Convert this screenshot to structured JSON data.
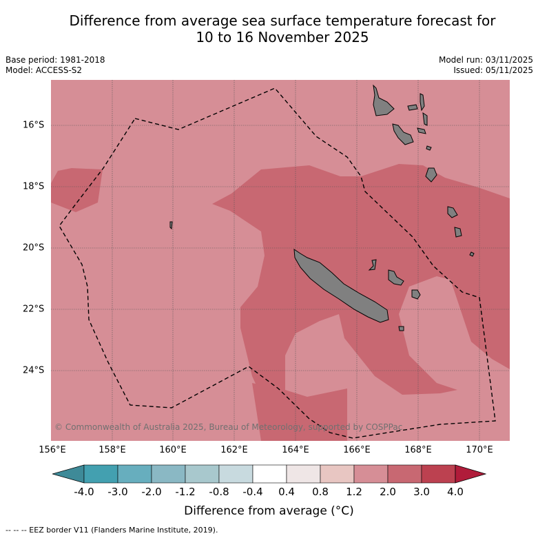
{
  "title_line1": "Difference from average sea surface temperature forecast for",
  "title_line2": "10 to 16 November 2025",
  "meta": {
    "base_period": "Base period: 1981-2018",
    "model": "Model: ACCESS-S2",
    "model_run": "Model run: 03/11/2025",
    "issued": "Issued: 05/11/2025"
  },
  "map": {
    "longitude_labels": [
      "156°E",
      "158°E",
      "160°E",
      "162°E",
      "164°E",
      "166°E",
      "168°E",
      "170°E"
    ],
    "latitude_labels": [
      "16°S",
      "18°S",
      "20°S",
      "22°S",
      "24°S"
    ],
    "copyright": "© Commonwealth of Australia 2025, Bureau of Meteorology, supported by COSPPac",
    "land_color": "#808080",
    "background_anomaly_color": "#d68e96",
    "warm_anomaly_color": "#c86872"
  },
  "colorbar": {
    "ticks": [
      "-4.0",
      "-3.0",
      "-2.0",
      "-1.2",
      "-0.8",
      "-0.4",
      "0.4",
      "0.8",
      "1.2",
      "2.0",
      "3.0",
      "4.0"
    ],
    "colors": [
      "#3e8a98",
      "#43a0b0",
      "#67aebe",
      "#8ab8c4",
      "#a8c8cd",
      "#c8dadf",
      "#ffffff",
      "#efe6e6",
      "#e8c6c2",
      "#d68e96",
      "#c86872",
      "#bc4150",
      "#b01c3a"
    ],
    "label": "Difference from average (°C)"
  },
  "footer": "--  --  -- EEZ border V11 (Flanders Marine Institute, 2019)."
}
